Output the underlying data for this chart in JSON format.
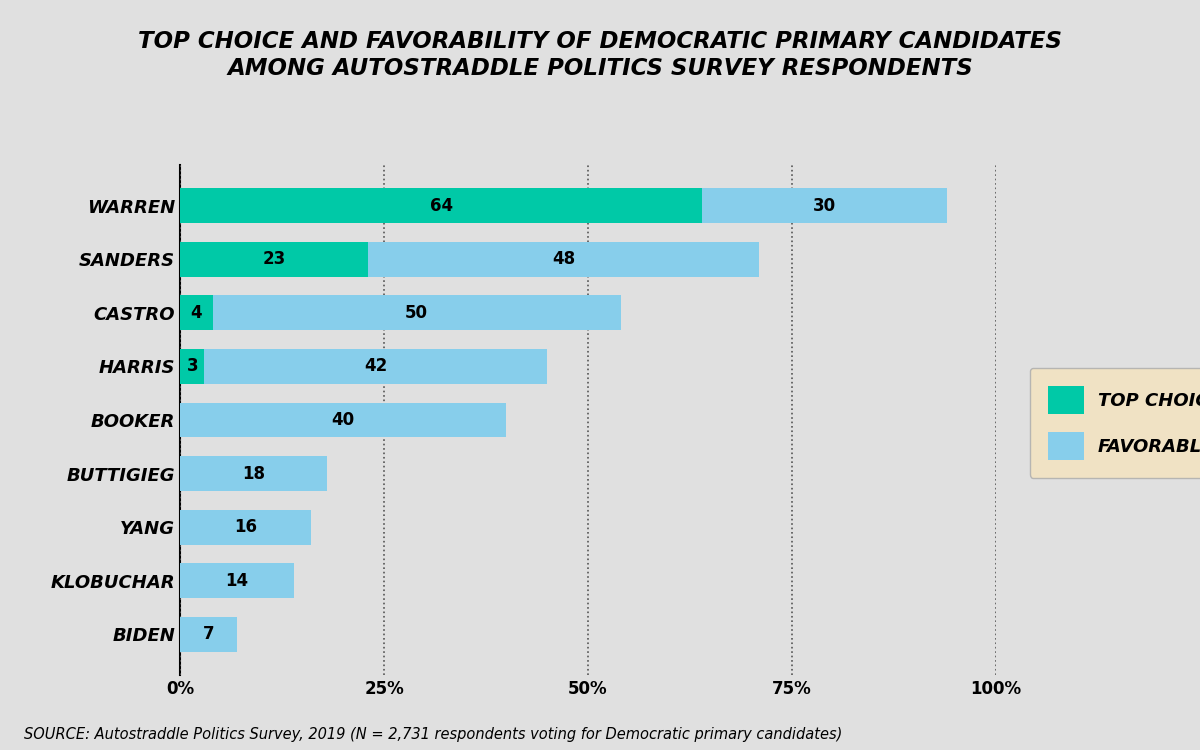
{
  "title_line1": "TOP CHOICE AND FAVORABILITY OF DEMOCRATIC PRIMARY CANDIDATES",
  "title_line2": "AMONG AUTOSTRADDLE POLITICS SURVEY RESPONDENTS",
  "candidates": [
    "WARREN",
    "SANDERS",
    "CASTRO",
    "HARRIS",
    "BOOKER",
    "BUTTIGIEG",
    "YANG",
    "KLOBUCHAR",
    "BIDEN"
  ],
  "top_choice": [
    64,
    23,
    4,
    3,
    0,
    0,
    0,
    0,
    0
  ],
  "favorable": [
    30,
    48,
    50,
    42,
    40,
    18,
    16,
    14,
    7
  ],
  "top_choice_color": "#00C9A7",
  "favorable_color": "#87CEEB",
  "background_color": "#E0E0E0",
  "bar_height": 0.65,
  "xlim": [
    0,
    100
  ],
  "xticks": [
    0,
    25,
    50,
    75,
    100
  ],
  "xtick_labels": [
    "0%",
    "25%",
    "50%",
    "75%",
    "100%"
  ],
  "source_text": "SOURCE: Autostraddle Politics Survey, 2019 (N = 2,731 respondents voting for Democratic primary candidates)",
  "legend_bg_color": "#F5E3BE",
  "title_fontsize": 16.5,
  "legend_fontsize": 13,
  "bar_label_fontsize": 12,
  "ytick_fontsize": 13,
  "xtick_fontsize": 12,
  "source_fontsize": 10.5
}
